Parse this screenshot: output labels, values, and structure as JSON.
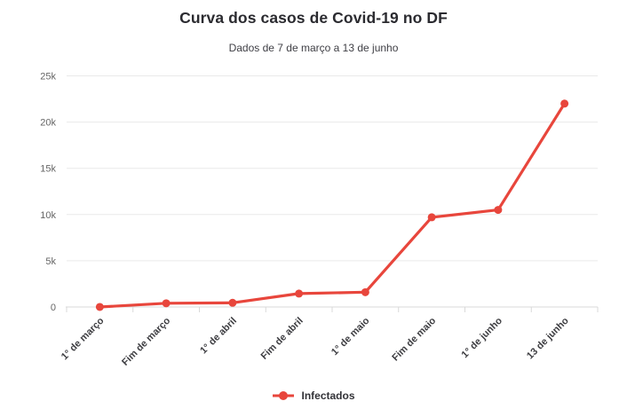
{
  "header": {
    "title": "Curva dos casos de Covid-19 no DF",
    "subtitle": "Dados de 7 de março a 13 de junho"
  },
  "chart_data": {
    "type": "line",
    "title": "Curva dos casos de Covid-19 no DF",
    "subtitle": "Dados de 7 de março a 13 de junho",
    "categories": [
      "1° de março",
      "Fim de março",
      "1° de abril",
      "Fim de abril",
      "1° de maio",
      "Fim de maio",
      "1° de junho",
      "13 de junho"
    ],
    "series": [
      {
        "name": "Infectados",
        "color": "#e8463c",
        "values": [
          1,
          400,
          450,
          1450,
          1600,
          9700,
          10500,
          22000
        ]
      }
    ],
    "ylim": [
      0,
      25000
    ],
    "ytick_step": 5000,
    "ytick_labels": [
      "0",
      "5k",
      "10k",
      "15k",
      "20k",
      "25k"
    ],
    "xlabel": "",
    "ylabel": "",
    "grid": true,
    "legend_position": "bottom",
    "x_label_rotation": -45
  },
  "legend": {
    "label": "Infectados"
  },
  "colors": {
    "series_red": "#e8463c",
    "gridline": "#e9e9e9",
    "axis_line": "#d9d9d9",
    "ytick_text": "#666666",
    "xtick_text": "#3d3d41",
    "title_text": "#2b2b30",
    "subtitle_text": "#3f3f45"
  }
}
